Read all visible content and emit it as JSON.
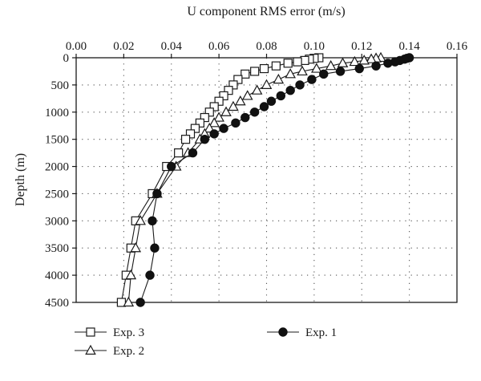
{
  "chart_data": {
    "type": "line",
    "title": "",
    "xlabel": "U component RMS error (m/s)",
    "ylabel": "Depth (m)",
    "xlim": [
      0,
      0.16
    ],
    "ylim": [
      4500,
      0
    ],
    "x_ticks": [
      "0.00",
      "0.02",
      "0.04",
      "0.06",
      "0.08",
      "0.10",
      "0.12",
      "0.14",
      "0.16"
    ],
    "y_ticks": [
      "0",
      "500",
      "1000",
      "1500",
      "2000",
      "2500",
      "3000",
      "3500",
      "4000",
      "4500"
    ],
    "x_axis_position": "top",
    "y_axis_inverted": true,
    "grid": "dotted",
    "legend_position": "bottom",
    "series": [
      {
        "name": "Exp. 3",
        "marker": "open-square",
        "points": [
          {
            "x": 0.102,
            "y": 0
          },
          {
            "x": 0.1,
            "y": 10
          },
          {
            "x": 0.098,
            "y": 25
          },
          {
            "x": 0.096,
            "y": 50
          },
          {
            "x": 0.093,
            "y": 75
          },
          {
            "x": 0.089,
            "y": 100
          },
          {
            "x": 0.084,
            "y": 150
          },
          {
            "x": 0.079,
            "y": 200
          },
          {
            "x": 0.075,
            "y": 250
          },
          {
            "x": 0.071,
            "y": 300
          },
          {
            "x": 0.068,
            "y": 400
          },
          {
            "x": 0.066,
            "y": 500
          },
          {
            "x": 0.064,
            "y": 600
          },
          {
            "x": 0.062,
            "y": 700
          },
          {
            "x": 0.06,
            "y": 800
          },
          {
            "x": 0.058,
            "y": 900
          },
          {
            "x": 0.056,
            "y": 1000
          },
          {
            "x": 0.054,
            "y": 1100
          },
          {
            "x": 0.052,
            "y": 1200
          },
          {
            "x": 0.05,
            "y": 1300
          },
          {
            "x": 0.048,
            "y": 1400
          },
          {
            "x": 0.046,
            "y": 1500
          },
          {
            "x": 0.043,
            "y": 1750
          },
          {
            "x": 0.038,
            "y": 2000
          },
          {
            "x": 0.032,
            "y": 2500
          },
          {
            "x": 0.025,
            "y": 3000
          },
          {
            "x": 0.023,
            "y": 3500
          },
          {
            "x": 0.021,
            "y": 4000
          },
          {
            "x": 0.019,
            "y": 4500
          }
        ]
      },
      {
        "name": "Exp. 2",
        "marker": "open-triangle",
        "points": [
          {
            "x": 0.128,
            "y": 0
          },
          {
            "x": 0.126,
            "y": 10
          },
          {
            "x": 0.124,
            "y": 25
          },
          {
            "x": 0.121,
            "y": 50
          },
          {
            "x": 0.117,
            "y": 75
          },
          {
            "x": 0.112,
            "y": 100
          },
          {
            "x": 0.107,
            "y": 150
          },
          {
            "x": 0.101,
            "y": 200
          },
          {
            "x": 0.095,
            "y": 250
          },
          {
            "x": 0.09,
            "y": 300
          },
          {
            "x": 0.085,
            "y": 400
          },
          {
            "x": 0.08,
            "y": 500
          },
          {
            "x": 0.076,
            "y": 600
          },
          {
            "x": 0.072,
            "y": 700
          },
          {
            "x": 0.069,
            "y": 800
          },
          {
            "x": 0.066,
            "y": 900
          },
          {
            "x": 0.063,
            "y": 1000
          },
          {
            "x": 0.06,
            "y": 1100
          },
          {
            "x": 0.058,
            "y": 1200
          },
          {
            "x": 0.056,
            "y": 1300
          },
          {
            "x": 0.054,
            "y": 1400
          },
          {
            "x": 0.052,
            "y": 1500
          },
          {
            "x": 0.047,
            "y": 1750
          },
          {
            "x": 0.042,
            "y": 2000
          },
          {
            "x": 0.034,
            "y": 2500
          },
          {
            "x": 0.027,
            "y": 3000
          },
          {
            "x": 0.025,
            "y": 3500
          },
          {
            "x": 0.023,
            "y": 4000
          },
          {
            "x": 0.022,
            "y": 4500
          }
        ]
      },
      {
        "name": "Exp. 1",
        "marker": "filled-circle",
        "points": [
          {
            "x": 0.14,
            "y": 0
          },
          {
            "x": 0.139,
            "y": 10
          },
          {
            "x": 0.138,
            "y": 25
          },
          {
            "x": 0.136,
            "y": 50
          },
          {
            "x": 0.134,
            "y": 75
          },
          {
            "x": 0.131,
            "y": 100
          },
          {
            "x": 0.126,
            "y": 150
          },
          {
            "x": 0.119,
            "y": 200
          },
          {
            "x": 0.111,
            "y": 250
          },
          {
            "x": 0.104,
            "y": 300
          },
          {
            "x": 0.099,
            "y": 400
          },
          {
            "x": 0.094,
            "y": 500
          },
          {
            "x": 0.09,
            "y": 600
          },
          {
            "x": 0.086,
            "y": 700
          },
          {
            "x": 0.082,
            "y": 800
          },
          {
            "x": 0.079,
            "y": 900
          },
          {
            "x": 0.075,
            "y": 1000
          },
          {
            "x": 0.071,
            "y": 1100
          },
          {
            "x": 0.067,
            "y": 1200
          },
          {
            "x": 0.062,
            "y": 1300
          },
          {
            "x": 0.058,
            "y": 1400
          },
          {
            "x": 0.054,
            "y": 1500
          },
          {
            "x": 0.049,
            "y": 1750
          },
          {
            "x": 0.04,
            "y": 2000
          },
          {
            "x": 0.034,
            "y": 2500
          },
          {
            "x": 0.032,
            "y": 3000
          },
          {
            "x": 0.033,
            "y": 3500
          },
          {
            "x": 0.031,
            "y": 4000
          },
          {
            "x": 0.027,
            "y": 4500
          }
        ]
      }
    ]
  }
}
